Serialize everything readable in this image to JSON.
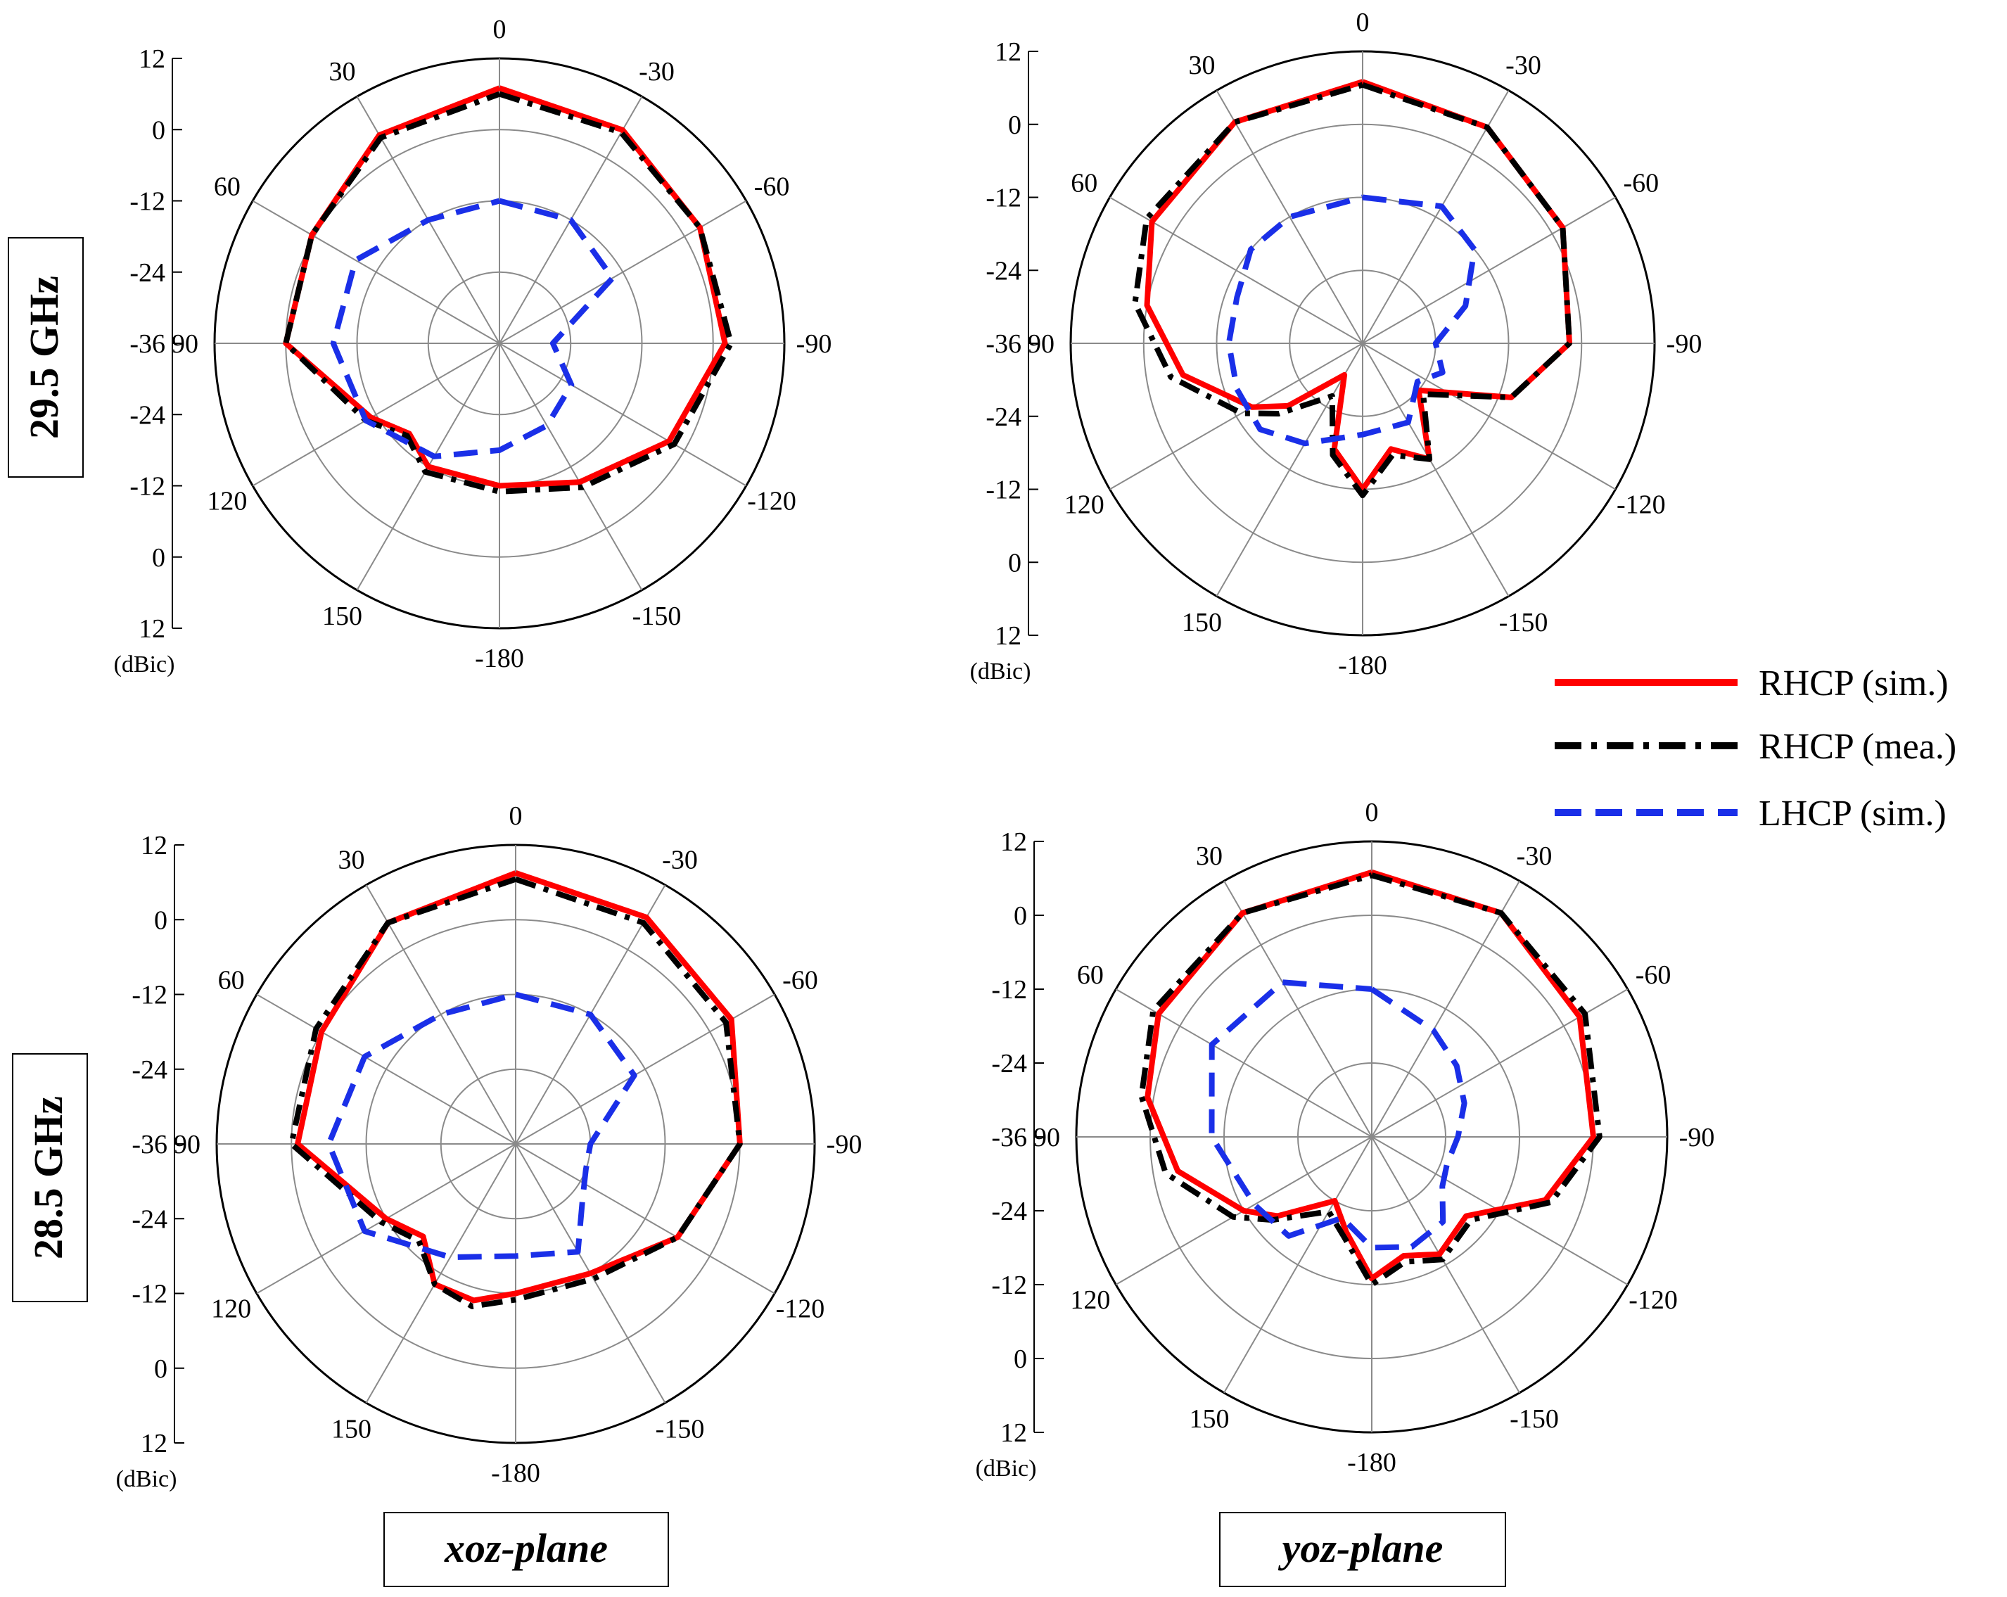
{
  "chart_data": [
    {
      "type": "polar",
      "name": "xoz-29.5",
      "row_label": "29.5 GHz",
      "plane": "xoz-plane",
      "unit_label": "(dBic)",
      "radial_ticks": [
        "12",
        "0",
        "-12",
        "-24",
        "-36",
        "-24",
        "-12",
        "0",
        "12"
      ],
      "angle_labels": [
        {
          "deg": 0,
          "text": "0"
        },
        {
          "deg": -30,
          "text": "-30"
        },
        {
          "deg": -60,
          "text": "-60"
        },
        {
          "deg": -90,
          "text": "-90"
        },
        {
          "deg": -120,
          "text": "-120"
        },
        {
          "deg": -150,
          "text": "-150"
        },
        {
          "deg": 180,
          "text": "-180"
        },
        {
          "deg": 150,
          "text": "150"
        },
        {
          "deg": 120,
          "text": "120"
        },
        {
          "deg": 90,
          "text": "90"
        },
        {
          "deg": 60,
          "text": "60"
        },
        {
          "deg": 30,
          "text": "30"
        }
      ],
      "r_range": [
        -36,
        12
      ],
      "series": [
        {
          "name": "RHCP (sim.)",
          "color": "#ff0000",
          "dash": "solid",
          "theta": [
            0,
            -30,
            -60,
            -90,
            -120,
            -150,
            180,
            150,
            135,
            120,
            90,
            60,
            30,
            0
          ],
          "gain": [
            7,
            5.5,
            3,
            2,
            -3,
            -9,
            -12,
            -12,
            -14.5,
            -11,
            0,
            0.5,
            4.5,
            7
          ]
        },
        {
          "name": "RHCP (mea.)",
          "color": "#000000",
          "dash": "dashdot",
          "theta": [
            0,
            -30,
            -60,
            -90,
            -120,
            -150,
            180,
            150,
            135,
            120,
            90,
            60,
            30,
            0
          ],
          "gain": [
            6,
            5,
            3,
            3,
            -2,
            -8,
            -11,
            -11,
            -14,
            -10,
            0,
            0.5,
            4,
            6
          ]
        },
        {
          "name": "LHCP (sim.)",
          "color": "#1a2fe8",
          "dash": "dashed",
          "theta": [
            0,
            -30,
            -60,
            -90,
            -120,
            -150,
            180,
            150,
            120,
            90,
            60,
            30,
            0
          ],
          "gain": [
            -12,
            -12,
            -14,
            -27,
            -22,
            -20,
            -18,
            -14,
            -10,
            -8,
            -8,
            -12,
            -12
          ]
        }
      ]
    },
    {
      "type": "polar",
      "name": "yoz-29.5",
      "plane": "yoz-plane",
      "unit_label": "(dBic)",
      "radial_ticks": [
        "12",
        "0",
        "-12",
        "-24",
        "-36",
        "-24",
        "-12",
        "0",
        "12"
      ],
      "angle_labels": [
        {
          "deg": 0,
          "text": "0"
        },
        {
          "deg": -30,
          "text": "-30"
        },
        {
          "deg": -60,
          "text": "-60"
        },
        {
          "deg": -90,
          "text": "-90"
        },
        {
          "deg": -120,
          "text": "-120"
        },
        {
          "deg": -150,
          "text": "-150"
        },
        {
          "deg": 180,
          "text": "-180"
        },
        {
          "deg": 150,
          "text": "150"
        },
        {
          "deg": 120,
          "text": "120"
        },
        {
          "deg": 90,
          "text": "90"
        },
        {
          "deg": 60,
          "text": "60"
        },
        {
          "deg": 30,
          "text": "30"
        }
      ],
      "r_range": [
        -36,
        12
      ],
      "series": [
        {
          "name": "RHCP (sim.)",
          "color": "#ff0000",
          "dash": "solid",
          "theta": [
            0,
            -30,
            -60,
            -90,
            -110,
            -130,
            -150,
            -165,
            180,
            165,
            150,
            130,
            120,
            100,
            80,
            60,
            30,
            0
          ],
          "gain": [
            7,
            5,
            2,
            -2,
            -10,
            -24,
            -14,
            -18,
            -12,
            -18,
            -30,
            -20,
            -15,
            -6,
            0,
            4,
            6,
            7
          ]
        },
        {
          "name": "RHCP (mea.)",
          "color": "#000000",
          "dash": "dashdot",
          "theta": [
            0,
            -30,
            -60,
            -90,
            -110,
            -130,
            -150,
            -165,
            180,
            165,
            150,
            130,
            120,
            100,
            80,
            60,
            30,
            0
          ],
          "gain": [
            6.5,
            5,
            2,
            -2,
            -10,
            -23,
            -14,
            -17,
            -11,
            -17,
            -26,
            -18,
            -13,
            -4,
            2,
            5,
            6,
            6.5
          ]
        },
        {
          "name": "LHCP (sim.)",
          "color": "#1a2fe8",
          "dash": "dashed",
          "theta": [
            0,
            -30,
            -50,
            -70,
            -90,
            -110,
            -125,
            -150,
            180,
            150,
            130,
            110,
            90,
            70,
            50,
            30,
            0
          ],
          "gain": [
            -12,
            -10,
            -12,
            -18,
            -24,
            -22,
            -25,
            -21,
            -21,
            -17,
            -14,
            -14,
            -14,
            -14,
            -12,
            -12,
            -12
          ]
        }
      ]
    },
    {
      "type": "polar",
      "name": "xoz-28.5",
      "row_label": "28.5 GHz",
      "plane": "xoz-plane",
      "unit_label": "(dBic)",
      "radial_ticks": [
        "12",
        "0",
        "-12",
        "-24",
        "-36",
        "-24",
        "-12",
        "0",
        "12"
      ],
      "angle_labels": [
        {
          "deg": 0,
          "text": "0"
        },
        {
          "deg": -30,
          "text": "-30"
        },
        {
          "deg": -60,
          "text": "-60"
        },
        {
          "deg": -90,
          "text": "-90"
        },
        {
          "deg": -120,
          "text": "-120"
        },
        {
          "deg": -150,
          "text": "-150"
        },
        {
          "deg": 180,
          "text": "-180"
        },
        {
          "deg": 150,
          "text": "150"
        },
        {
          "deg": 120,
          "text": "120"
        },
        {
          "deg": 90,
          "text": "90"
        },
        {
          "deg": 60,
          "text": "60"
        },
        {
          "deg": 30,
          "text": "30"
        }
      ],
      "r_range": [
        -36,
        12
      ],
      "series": [
        {
          "name": "RHCP (sim.)",
          "color": "#ff0000",
          "dash": "solid",
          "theta": [
            0,
            -30,
            -60,
            -90,
            -120,
            -150,
            180,
            165,
            150,
            135,
            120,
            90,
            60,
            30,
            0
          ],
          "gain": [
            7.5,
            6,
            4,
            0,
            -6,
            -12,
            -12,
            -10,
            -10,
            -15,
            -12,
            -1,
            0,
            5,
            7.5
          ]
        },
        {
          "name": "RHCP (mea.)",
          "color": "#000000",
          "dash": "dashdot",
          "theta": [
            0,
            -30,
            -60,
            -90,
            -120,
            -150,
            180,
            165,
            150,
            135,
            120,
            90,
            60,
            30,
            0
          ],
          "gain": [
            6.5,
            5,
            3,
            0,
            -6,
            -11,
            -11,
            -9,
            -10,
            -14,
            -11,
            0,
            1,
            5,
            6.5
          ]
        },
        {
          "name": "LHCP (sim.)",
          "color": "#1a2fe8",
          "dash": "dashed",
          "theta": [
            0,
            -30,
            -60,
            -90,
            -110,
            -130,
            -150,
            180,
            150,
            120,
            90,
            60,
            30,
            0
          ],
          "gain": [
            -12,
            -12,
            -14,
            -24,
            -24,
            -22,
            -16,
            -18,
            -15,
            -8,
            -6,
            -8,
            -12,
            -12
          ]
        }
      ]
    },
    {
      "type": "polar",
      "name": "yoz-28.5",
      "plane": "yoz-plane",
      "unit_label": "(dBic)",
      "radial_ticks": [
        "12",
        "0",
        "-12",
        "-24",
        "-36",
        "-24",
        "-12",
        "0",
        "12"
      ],
      "angle_labels": [
        {
          "deg": 0,
          "text": "0"
        },
        {
          "deg": -30,
          "text": "-30"
        },
        {
          "deg": -60,
          "text": "-60"
        },
        {
          "deg": -90,
          "text": "-90"
        },
        {
          "deg": -120,
          "text": "-120"
        },
        {
          "deg": -150,
          "text": "-150"
        },
        {
          "deg": 180,
          "text": "-180"
        },
        {
          "deg": 150,
          "text": "150"
        },
        {
          "deg": 120,
          "text": "120"
        },
        {
          "deg": 90,
          "text": "90"
        },
        {
          "deg": 60,
          "text": "60"
        },
        {
          "deg": 30,
          "text": "30"
        }
      ],
      "r_range": [
        -36,
        12
      ],
      "series": [
        {
          "name": "RHCP (sim.)",
          "color": "#ff0000",
          "dash": "solid",
          "theta": [
            0,
            -30,
            -60,
            -90,
            -110,
            -130,
            -150,
            -165,
            180,
            165,
            150,
            130,
            120,
            100,
            80,
            60,
            30,
            0
          ],
          "gain": [
            7,
            6,
            3,
            0,
            -6,
            -16,
            -14,
            -16,
            -13,
            -20,
            -24,
            -16,
            -12,
            -4,
            1,
            4,
            6,
            7
          ]
        },
        {
          "name": "RHCP (mea.)",
          "color": "#000000",
          "dash": "dashdot",
          "theta": [
            0,
            -30,
            -60,
            -90,
            -110,
            -130,
            -150,
            -165,
            180,
            165,
            150,
            130,
            120,
            100,
            80,
            60,
            30,
            0
          ],
          "gain": [
            6.5,
            6,
            4,
            1,
            -5,
            -15,
            -13,
            -15,
            -12,
            -19,
            -22,
            -15,
            -10,
            -2,
            2,
            5,
            6,
            6.5
          ]
        },
        {
          "name": "LHCP (sim.)",
          "color": "#1a2fe8",
          "dash": "dashed",
          "theta": [
            0,
            -30,
            -50,
            -70,
            -90,
            -110,
            -125,
            -140,
            -160,
            180,
            160,
            140,
            120,
            90,
            60,
            30,
            0
          ],
          "gain": [
            -12,
            -16,
            -18,
            -20,
            -22,
            -23,
            -22,
            -18,
            -17,
            -18,
            -22,
            -15,
            -14,
            -10,
            -6,
            -7,
            -12
          ]
        }
      ]
    }
  ],
  "legend": [
    {
      "label": "RHCP (sim.)",
      "color": "#ff0000",
      "dash": "solid"
    },
    {
      "label": "RHCP (mea.)",
      "color": "#000000",
      "dash": "dashdot"
    },
    {
      "label": "LHCP (sim.)",
      "color": "#1a2fe8",
      "dash": "dashed"
    }
  ],
  "row_labels": [
    "29.5 GHz",
    "28.5 GHz"
  ],
  "column_labels": [
    "xoz-plane",
    "yoz-plane"
  ]
}
